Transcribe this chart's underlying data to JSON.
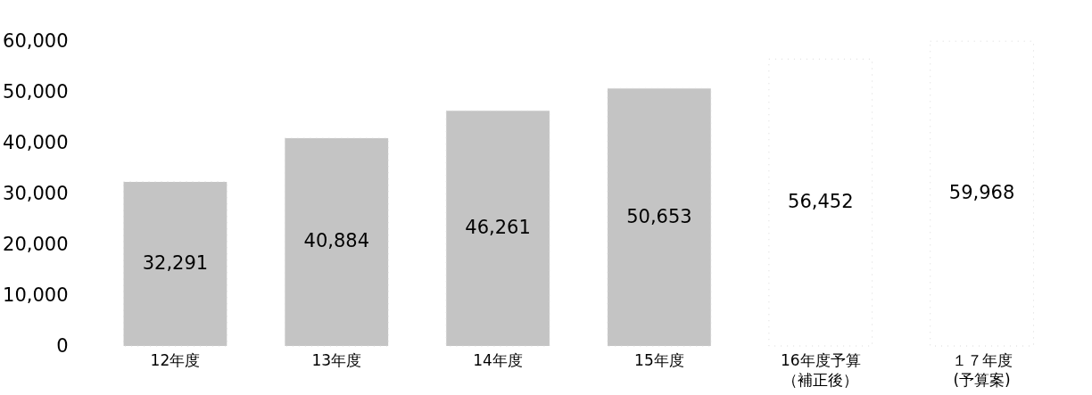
{
  "chart_data": {
    "type": "bar",
    "categories": [
      "12年度",
      "13年度",
      "14年度",
      "15年度",
      "16年度予算（補正後）",
      "１７年度(予算案)"
    ],
    "values": [
      32291,
      40884,
      46261,
      50653,
      56452,
      59968
    ],
    "colors": [
      "#c4c4c4",
      "#c4c4c4",
      "#c4c4c4",
      "#c4c4c4",
      "#ffffff",
      "#ffffff"
    ],
    "value_labels": [
      "32,291",
      "40,884",
      "46,261",
      "50,653",
      "56,452",
      "59,968"
    ],
    "ylim": [
      0,
      60000
    ],
    "yticks": [
      0,
      {
        "value": 10000,
        "label": "10,000"
      },
      {
        "value": 20000,
        "label": "20,000"
      },
      {
        "value": 30000,
        "label": "30,000"
      },
      {
        "value": 40000,
        "label": "40,000"
      },
      {
        "value": 50000,
        "label": "50,000"
      },
      {
        "value": 60000,
        "label": "60,000"
      }
    ],
    "grid": false
  }
}
